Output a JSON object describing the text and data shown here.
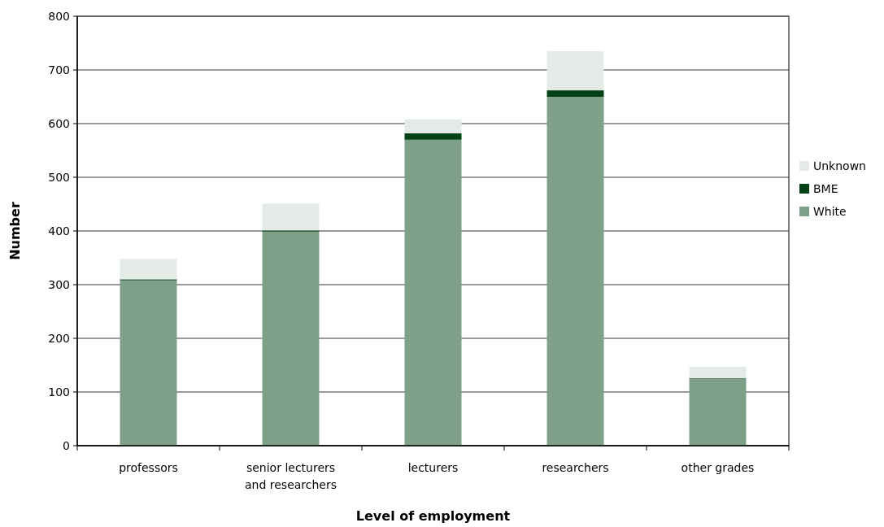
{
  "chart_data": {
    "type": "bar",
    "stacked": true,
    "xlabel": "Level of employment",
    "ylabel": "Number",
    "categories": [
      "professors",
      "senior lecturers and researchers",
      "lecturers",
      "researchers",
      "other grades"
    ],
    "series": [
      {
        "name": "White",
        "color": "#7fa088",
        "values": [
          308,
          399,
          570,
          650,
          125
        ]
      },
      {
        "name": "BME",
        "color": "#004214",
        "values": [
          2,
          2,
          12,
          12,
          1
        ]
      },
      {
        "name": "Unknown",
        "color": "#e4ebe7",
        "values": [
          38,
          50,
          26,
          73,
          21
        ]
      }
    ],
    "ylim": [
      0,
      800
    ],
    "yticks": [
      0,
      100,
      200,
      300,
      400,
      500,
      600,
      700,
      800
    ],
    "grid": "y",
    "legend": "right"
  }
}
